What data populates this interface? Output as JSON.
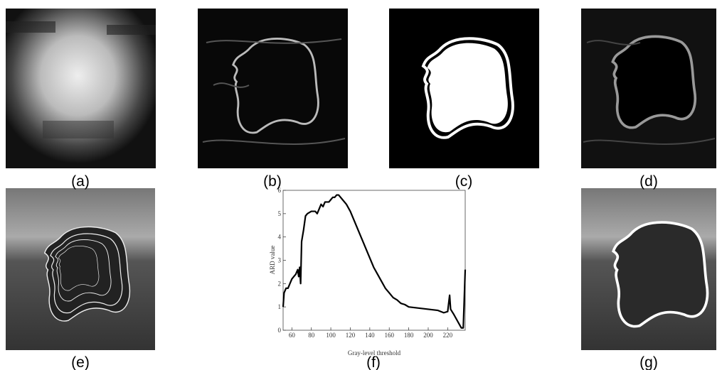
{
  "panels": [
    {
      "label": "(a)"
    },
    {
      "label": "(b)"
    },
    {
      "label": "(c)"
    },
    {
      "label": "(d)"
    },
    {
      "label": "(e)"
    },
    {
      "label": "(f)"
    },
    {
      "label": "(g)"
    }
  ],
  "chart_data": {
    "type": "line",
    "xlabel": "Gray-level threshold",
    "ylabel": "ARD value",
    "x": [
      51,
      52,
      54,
      56,
      58,
      60,
      62,
      64,
      66,
      67,
      68,
      69,
      70,
      72,
      74,
      76,
      80,
      84,
      86,
      88,
      90,
      92,
      94,
      96,
      98,
      100,
      102,
      104,
      106,
      108,
      110,
      112,
      116,
      120,
      124,
      128,
      132,
      136,
      140,
      144,
      148,
      152,
      156,
      160,
      164,
      168,
      172,
      176,
      180,
      190,
      200,
      210,
      216,
      220,
      222,
      223,
      226,
      230,
      234,
      236,
      237,
      238
    ],
    "values": [
      1.0,
      1.6,
      1.8,
      1.8,
      2.0,
      2.2,
      2.3,
      2.4,
      2.6,
      2.3,
      2.7,
      2.0,
      3.8,
      4.3,
      4.9,
      5.0,
      5.1,
      5.1,
      5.0,
      5.2,
      5.4,
      5.3,
      5.5,
      5.5,
      5.5,
      5.6,
      5.7,
      5.7,
      5.8,
      5.8,
      5.7,
      5.6,
      5.4,
      5.1,
      4.7,
      4.3,
      3.9,
      3.5,
      3.1,
      2.7,
      2.4,
      2.1,
      1.8,
      1.6,
      1.4,
      1.3,
      1.15,
      1.1,
      1.0,
      0.95,
      0.9,
      0.85,
      0.75,
      0.8,
      1.5,
      0.9,
      0.7,
      0.4,
      0.1,
      0.1,
      1.3,
      2.6
    ],
    "color": "#000000",
    "xlim": [
      51,
      238
    ],
    "xticks": [
      60,
      80,
      100,
      120,
      140,
      160,
      180,
      200,
      220
    ],
    "ylim": [
      0,
      6
    ],
    "yticks": [
      0,
      1,
      2,
      3,
      4,
      5,
      6
    ]
  }
}
